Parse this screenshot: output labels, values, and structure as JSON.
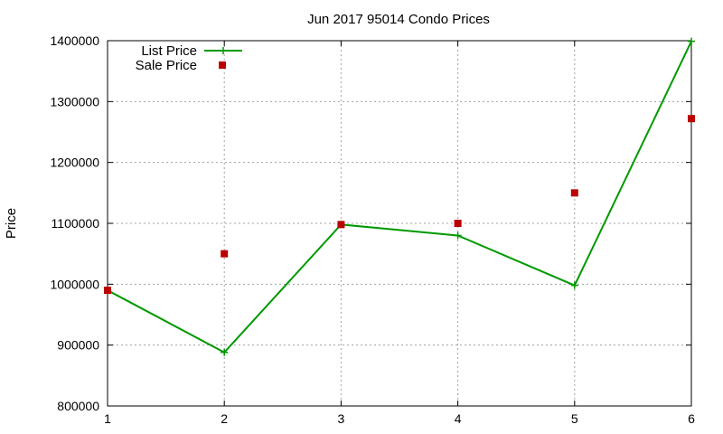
{
  "chart_data": {
    "type": "line",
    "title": "Jun 2017 95014 Condo Prices",
    "xlabel": "",
    "ylabel": "Price",
    "x": [
      1,
      2,
      3,
      4,
      5,
      6
    ],
    "xlim": [
      1,
      6
    ],
    "ylim": [
      800000,
      1400000
    ],
    "x_ticks": [
      "1",
      "2",
      "3",
      "4",
      "5",
      "6"
    ],
    "y_ticks": [
      "800000",
      "900000",
      "1000000",
      "1100000",
      "1200000",
      "1300000",
      "1400000"
    ],
    "grid": true,
    "legend_position": "top-left",
    "series": [
      {
        "name": "List Price",
        "style": "line+points",
        "marker": "plus",
        "color": "#009900",
        "values": [
          990000,
          888000,
          1098000,
          1080000,
          998000,
          1399000
        ]
      },
      {
        "name": "Sale Price",
        "style": "points",
        "marker": "square",
        "color": "#bb0000",
        "values": [
          990000,
          1050000,
          1098000,
          1100000,
          1150000,
          1272000
        ]
      }
    ]
  }
}
